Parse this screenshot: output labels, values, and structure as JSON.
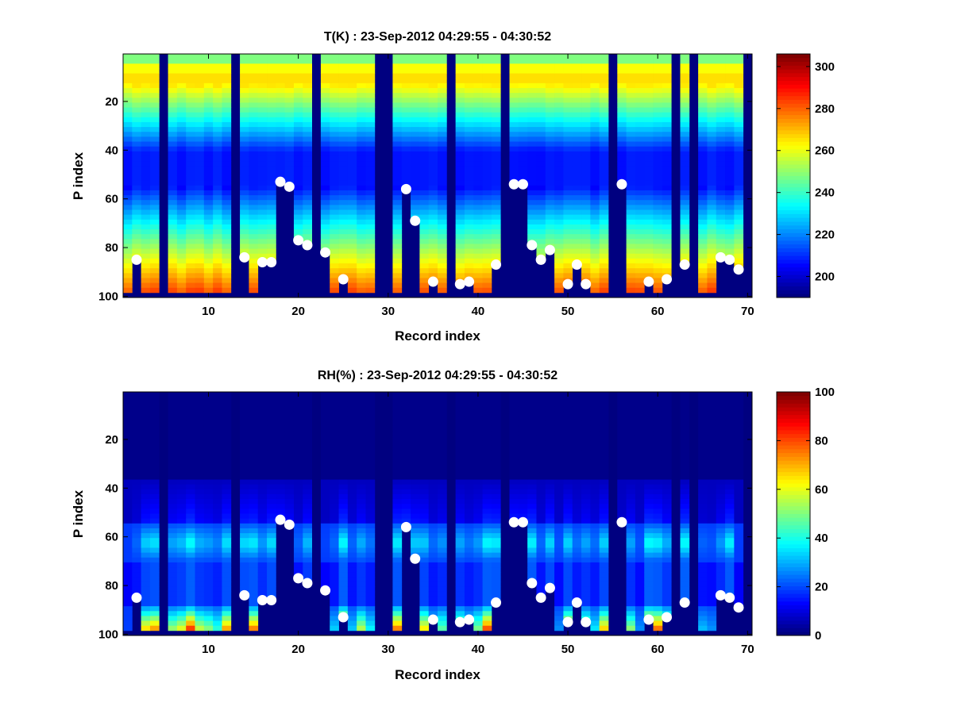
{
  "chart_data": [
    {
      "type": "heatmap",
      "title": "T(K) : 23-Sep-2012 04:29:55 - 04:30:52",
      "xlabel": "Record index",
      "ylabel": "P index",
      "xlim": [
        0.5,
        70.5
      ],
      "ylim": [
        0.5,
        100.5
      ],
      "x_ticks": [
        10,
        20,
        30,
        40,
        50,
        60,
        70
      ],
      "y_ticks": [
        20,
        40,
        60,
        80,
        100
      ],
      "colorbar": {
        "range": [
          190,
          306
        ],
        "ticks": [
          200,
          220,
          240,
          260,
          280,
          300
        ],
        "colormap": "jet"
      },
      "profile_shape": "temperature",
      "missing_records": [
        5,
        13,
        22,
        29,
        30,
        37,
        43,
        55,
        62,
        64,
        70
      ],
      "markers": [
        {
          "x": 2,
          "y": 85
        },
        {
          "x": 14,
          "y": 84
        },
        {
          "x": 16,
          "y": 86
        },
        {
          "x": 17,
          "y": 86
        },
        {
          "x": 18,
          "y": 53
        },
        {
          "x": 19,
          "y": 55
        },
        {
          "x": 20,
          "y": 77
        },
        {
          "x": 21,
          "y": 79
        },
        {
          "x": 23,
          "y": 82
        },
        {
          "x": 25,
          "y": 93
        },
        {
          "x": 32,
          "y": 56
        },
        {
          "x": 33,
          "y": 69
        },
        {
          "x": 35,
          "y": 94
        },
        {
          "x": 38,
          "y": 95
        },
        {
          "x": 39,
          "y": 94
        },
        {
          "x": 42,
          "y": 87
        },
        {
          "x": 44,
          "y": 54
        },
        {
          "x": 45,
          "y": 54
        },
        {
          "x": 46,
          "y": 79
        },
        {
          "x": 47,
          "y": 85
        },
        {
          "x": 48,
          "y": 81
        },
        {
          "x": 50,
          "y": 95
        },
        {
          "x": 51,
          "y": 87
        },
        {
          "x": 52,
          "y": 95
        },
        {
          "x": 56,
          "y": 54
        },
        {
          "x": 59,
          "y": 94
        },
        {
          "x": 61,
          "y": 93
        },
        {
          "x": 63,
          "y": 87
        },
        {
          "x": 67,
          "y": 84
        },
        {
          "x": 68,
          "y": 85
        },
        {
          "x": 69,
          "y": 89
        }
      ]
    },
    {
      "type": "heatmap",
      "title": "RH(%) : 23-Sep-2012 04:29:55 - 04:30:52",
      "xlabel": "Record index",
      "ylabel": "P index",
      "xlim": [
        0.5,
        70.5
      ],
      "ylim": [
        0.5,
        100.5
      ],
      "x_ticks": [
        10,
        20,
        30,
        40,
        50,
        60,
        70
      ],
      "y_ticks": [
        20,
        40,
        60,
        80,
        100
      ],
      "colorbar": {
        "range": [
          0,
          100
        ],
        "ticks": [
          0,
          20,
          40,
          60,
          80,
          100
        ],
        "colormap": "jet"
      },
      "profile_shape": "humidity",
      "missing_records": [
        5,
        13,
        22,
        29,
        30,
        37,
        43,
        55,
        62,
        64,
        70
      ],
      "markers": [
        {
          "x": 2,
          "y": 85
        },
        {
          "x": 14,
          "y": 84
        },
        {
          "x": 16,
          "y": 86
        },
        {
          "x": 17,
          "y": 86
        },
        {
          "x": 18,
          "y": 53
        },
        {
          "x": 19,
          "y": 55
        },
        {
          "x": 20,
          "y": 77
        },
        {
          "x": 21,
          "y": 79
        },
        {
          "x": 23,
          "y": 82
        },
        {
          "x": 25,
          "y": 93
        },
        {
          "x": 32,
          "y": 56
        },
        {
          "x": 33,
          "y": 69
        },
        {
          "x": 35,
          "y": 94
        },
        {
          "x": 38,
          "y": 95
        },
        {
          "x": 39,
          "y": 94
        },
        {
          "x": 42,
          "y": 87
        },
        {
          "x": 44,
          "y": 54
        },
        {
          "x": 45,
          "y": 54
        },
        {
          "x": 46,
          "y": 79
        },
        {
          "x": 47,
          "y": 85
        },
        {
          "x": 48,
          "y": 81
        },
        {
          "x": 50,
          "y": 95
        },
        {
          "x": 51,
          "y": 87
        },
        {
          "x": 52,
          "y": 95
        },
        {
          "x": 56,
          "y": 54
        },
        {
          "x": 59,
          "y": 94
        },
        {
          "x": 61,
          "y": 93
        },
        {
          "x": 63,
          "y": 87
        },
        {
          "x": 67,
          "y": 84
        },
        {
          "x": 68,
          "y": 85
        },
        {
          "x": 69,
          "y": 89
        }
      ]
    }
  ]
}
